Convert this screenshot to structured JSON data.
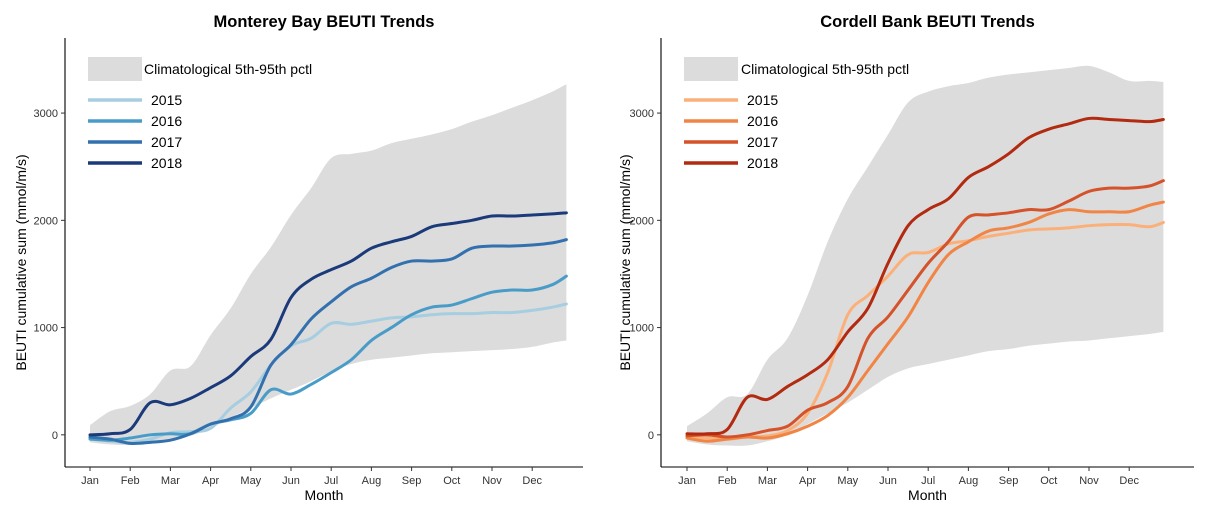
{
  "chart_data": [
    {
      "type": "line",
      "title": "Monterey Bay BEUTI Trends",
      "xlabel": "Month",
      "ylabel": "BEUTI cumulative sum (mmol/m/s)",
      "x_tick_labels": [
        "Jan",
        "Feb",
        "Mar",
        "Apr",
        "May",
        "Jun",
        "Jul",
        "Aug",
        "Sep",
        "Oct",
        "Nov",
        "Dec"
      ],
      "y_ticks": [
        0,
        1000,
        2000,
        3000
      ],
      "xlim": [
        0,
        12.0
      ],
      "ylim": [
        -300,
        3700
      ],
      "grid": false,
      "legend_position": "top-left",
      "band": {
        "name": "Climatological 5th-95th pctl",
        "color": "#dcdcdc",
        "x": [
          0,
          0.5,
          1.0,
          1.5,
          2.0,
          2.5,
          3.0,
          3.5,
          4.0,
          4.5,
          5.0,
          5.5,
          6.0,
          6.5,
          7.0,
          7.5,
          8.0,
          8.5,
          9.0,
          9.5,
          10.0,
          10.5,
          11.0,
          11.5,
          11.85
        ],
        "lower": [
          -70,
          -90,
          -95,
          -80,
          -60,
          -10,
          60,
          160,
          250,
          340,
          420,
          500,
          590,
          660,
          700,
          720,
          740,
          760,
          770,
          780,
          790,
          800,
          820,
          860,
          880
        ],
        "upper": [
          90,
          220,
          270,
          380,
          600,
          640,
          930,
          1180,
          1500,
          1750,
          2050,
          2300,
          2580,
          2620,
          2650,
          2720,
          2760,
          2800,
          2850,
          2920,
          2980,
          3050,
          3120,
          3200,
          3270
        ]
      },
      "series": [
        {
          "name": "2015",
          "color": "#a6cee0",
          "x": [
            0,
            0.5,
            1.0,
            1.5,
            2.0,
            2.5,
            3.0,
            3.5,
            4.0,
            4.5,
            5.0,
            5.5,
            6.0,
            6.5,
            7.0,
            7.5,
            8.0,
            8.5,
            9.0,
            9.5,
            10.0,
            10.5,
            11.0,
            11.5,
            11.85
          ],
          "y": [
            -30,
            -60,
            -70,
            -40,
            20,
            30,
            60,
            250,
            400,
            650,
            830,
            900,
            1040,
            1030,
            1060,
            1090,
            1100,
            1120,
            1130,
            1130,
            1140,
            1140,
            1160,
            1190,
            1220
          ]
        },
        {
          "name": "2016",
          "color": "#4a9cc8",
          "x": [
            0,
            0.5,
            1.0,
            1.5,
            2.0,
            2.5,
            3.0,
            3.5,
            4.0,
            4.5,
            5.0,
            5.5,
            6.0,
            6.5,
            7.0,
            7.5,
            8.0,
            8.5,
            9.0,
            9.5,
            10.0,
            10.5,
            11.0,
            11.5,
            11.85
          ],
          "y": [
            -40,
            -50,
            -30,
            0,
            10,
            10,
            100,
            140,
            200,
            420,
            380,
            470,
            580,
            700,
            880,
            1000,
            1120,
            1190,
            1210,
            1270,
            1330,
            1350,
            1350,
            1400,
            1480
          ]
        },
        {
          "name": "2017",
          "color": "#3270ae",
          "x": [
            0,
            0.5,
            1.0,
            1.5,
            2.0,
            2.5,
            3.0,
            3.5,
            4.0,
            4.5,
            5.0,
            5.5,
            6.0,
            6.5,
            7.0,
            7.5,
            8.0,
            8.5,
            9.0,
            9.5,
            10.0,
            10.5,
            11.0,
            11.5,
            11.85
          ],
          "y": [
            -20,
            -40,
            -80,
            -70,
            -50,
            10,
            100,
            150,
            260,
            650,
            840,
            1080,
            1240,
            1380,
            1460,
            1560,
            1620,
            1620,
            1640,
            1740,
            1760,
            1760,
            1770,
            1790,
            1820
          ]
        },
        {
          "name": "2018",
          "color": "#1b3a7a",
          "x": [
            0,
            0.5,
            1.0,
            1.5,
            2.0,
            2.5,
            3.0,
            3.5,
            4.0,
            4.5,
            5.0,
            5.5,
            6.0,
            6.5,
            7.0,
            7.5,
            8.0,
            8.5,
            9.0,
            9.5,
            10.0,
            10.5,
            11.0,
            11.5,
            11.85
          ],
          "y": [
            0,
            10,
            50,
            300,
            280,
            340,
            440,
            550,
            730,
            890,
            1280,
            1450,
            1540,
            1620,
            1740,
            1800,
            1850,
            1940,
            1970,
            2000,
            2040,
            2040,
            2050,
            2060,
            2070
          ]
        }
      ]
    },
    {
      "type": "line",
      "title": "Cordell Bank BEUTI Trends",
      "xlabel": "Month",
      "ylabel": "BEUTI cumulative sum (mmol/m/s)",
      "x_tick_labels": [
        "Jan",
        "Feb",
        "Mar",
        "Apr",
        "May",
        "Jun",
        "Jul",
        "Aug",
        "Sep",
        "Oct",
        "Nov",
        "Dec"
      ],
      "y_ticks": [
        0,
        1000,
        2000,
        3000
      ],
      "xlim": [
        0,
        12.0
      ],
      "ylim": [
        -300,
        3700
      ],
      "grid": false,
      "legend_position": "top-left",
      "band": {
        "name": "Climatological 5th-95th pctl",
        "color": "#dcdcdc",
        "x": [
          0,
          0.5,
          1.0,
          1.5,
          2.0,
          2.5,
          3.0,
          3.5,
          4.0,
          4.5,
          5.0,
          5.5,
          6.0,
          6.5,
          7.0,
          7.5,
          8.0,
          8.5,
          9.0,
          9.5,
          10.0,
          10.5,
          11.0,
          11.5,
          11.85
        ],
        "lower": [
          -60,
          -90,
          -100,
          -100,
          -60,
          0,
          100,
          200,
          300,
          420,
          540,
          620,
          660,
          700,
          740,
          780,
          800,
          830,
          850,
          870,
          880,
          900,
          920,
          940,
          960
        ],
        "upper": [
          80,
          200,
          350,
          380,
          700,
          900,
          1300,
          1800,
          2200,
          2500,
          2800,
          3100,
          3200,
          3250,
          3280,
          3330,
          3360,
          3380,
          3400,
          3420,
          3440,
          3380,
          3300,
          3300,
          3290
        ]
      },
      "series": [
        {
          "name": "2015",
          "color": "#fbb07a",
          "x": [
            0,
            0.5,
            1.0,
            1.5,
            2.0,
            2.5,
            3.0,
            3.5,
            4.0,
            4.5,
            5.0,
            5.5,
            6.0,
            6.5,
            7.0,
            7.5,
            8.0,
            8.5,
            9.0,
            9.5,
            10.0,
            10.5,
            11.0,
            11.5,
            11.85
          ],
          "y": [
            -20,
            -30,
            -40,
            -20,
            -10,
            40,
            200,
            580,
            1120,
            1300,
            1480,
            1680,
            1700,
            1780,
            1810,
            1850,
            1880,
            1910,
            1920,
            1930,
            1950,
            1960,
            1960,
            1940,
            1980
          ]
        },
        {
          "name": "2016",
          "color": "#f08545",
          "x": [
            0,
            0.5,
            1.0,
            1.5,
            2.0,
            2.5,
            3.0,
            3.5,
            4.0,
            4.5,
            5.0,
            5.5,
            6.0,
            6.5,
            7.0,
            7.5,
            8.0,
            8.5,
            9.0,
            9.5,
            10.0,
            10.5,
            11.0,
            11.5,
            11.85
          ],
          "y": [
            -30,
            -60,
            -40,
            -20,
            -30,
            10,
            80,
            180,
            350,
            600,
            850,
            1100,
            1420,
            1680,
            1800,
            1900,
            1930,
            1980,
            2060,
            2100,
            2080,
            2080,
            2080,
            2140,
            2170
          ]
        },
        {
          "name": "2017",
          "color": "#d4532a",
          "x": [
            0,
            0.5,
            1.0,
            1.5,
            2.0,
            2.5,
            3.0,
            3.5,
            4.0,
            4.5,
            5.0,
            5.5,
            6.0,
            6.5,
            7.0,
            7.5,
            8.0,
            8.5,
            9.0,
            9.5,
            10.0,
            10.5,
            11.0,
            11.5,
            11.85
          ],
          "y": [
            -10,
            0,
            -20,
            0,
            40,
            80,
            230,
            300,
            450,
            900,
            1100,
            1350,
            1600,
            1800,
            2030,
            2050,
            2070,
            2100,
            2100,
            2180,
            2270,
            2300,
            2300,
            2320,
            2370
          ]
        },
        {
          "name": "2018",
          "color": "#b22a10",
          "x": [
            0,
            0.5,
            1.0,
            1.5,
            2.0,
            2.5,
            3.0,
            3.5,
            4.0,
            4.5,
            5.0,
            5.5,
            6.0,
            6.5,
            7.0,
            7.5,
            8.0,
            8.5,
            9.0,
            9.5,
            10.0,
            10.5,
            11.0,
            11.5,
            11.85
          ],
          "y": [
            10,
            10,
            50,
            350,
            330,
            450,
            560,
            700,
            960,
            1180,
            1600,
            1950,
            2100,
            2200,
            2400,
            2500,
            2620,
            2770,
            2850,
            2900,
            2950,
            2940,
            2930,
            2920,
            2940
          ]
        }
      ]
    }
  ]
}
